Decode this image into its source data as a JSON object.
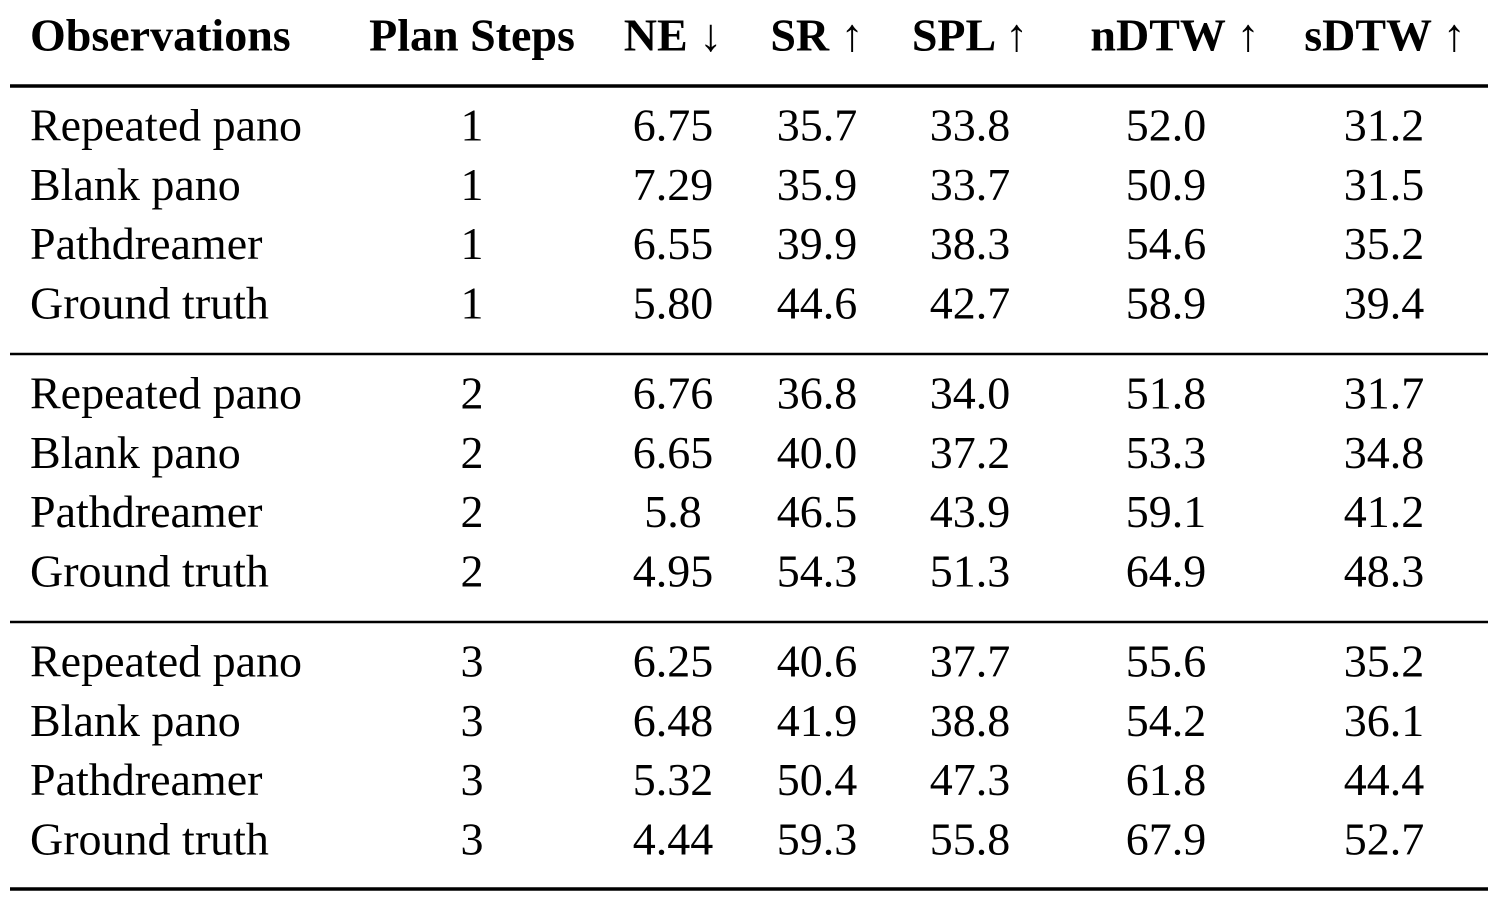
{
  "table": {
    "header": [
      "Observations",
      "Plan Steps",
      "NE ↓",
      "SR ↑",
      "SPL ↑",
      "nDTW ↑",
      "sDTW ↑"
    ],
    "sections": [
      [
        [
          "Repeated pano",
          "1",
          "6.75",
          "35.7",
          "33.8",
          "52.0",
          "31.2"
        ],
        [
          "Blank pano",
          "1",
          "7.29",
          "35.9",
          "33.7",
          "50.9",
          "31.5"
        ],
        [
          "Pathdreamer",
          "1",
          "6.55",
          "39.9",
          "38.3",
          "54.6",
          "35.2"
        ],
        [
          "Ground truth",
          "1",
          "5.80",
          "44.6",
          "42.7",
          "58.9",
          "39.4"
        ]
      ],
      [
        [
          "Repeated pano",
          "2",
          "6.76",
          "36.8",
          "34.0",
          "51.8",
          "31.7"
        ],
        [
          "Blank pano",
          "2",
          "6.65",
          "40.0",
          "37.2",
          "53.3",
          "34.8"
        ],
        [
          "Pathdreamer",
          "2",
          "5.8",
          "46.5",
          "43.9",
          "59.1",
          "41.2"
        ],
        [
          "Ground truth",
          "2",
          "4.95",
          "54.3",
          "51.3",
          "64.9",
          "48.3"
        ]
      ],
      [
        [
          "Repeated pano",
          "3",
          "6.25",
          "40.6",
          "37.7",
          "55.6",
          "35.2"
        ],
        [
          "Blank pano",
          "3",
          "6.48",
          "41.9",
          "38.8",
          "54.2",
          "36.1"
        ],
        [
          "Pathdreamer",
          "3",
          "5.32",
          "50.4",
          "47.3",
          "61.8",
          "44.4"
        ],
        [
          "Ground truth",
          "3",
          "4.44",
          "59.3",
          "55.8",
          "67.9",
          "52.7"
        ]
      ]
    ]
  }
}
